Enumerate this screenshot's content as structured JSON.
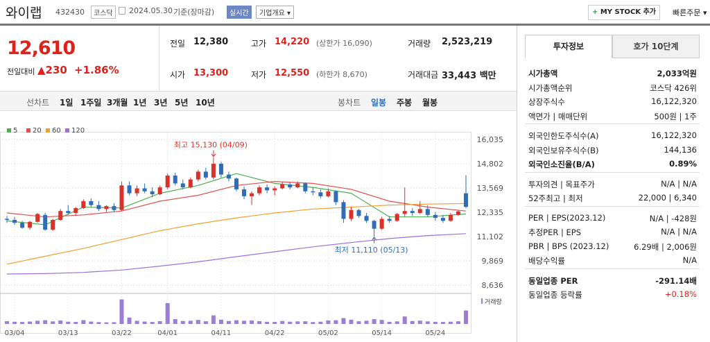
{
  "header": {
    "name": "와이랩",
    "code": "432430",
    "market": "코스닥",
    "date": "2024.05.30",
    "basis": "기준(장마감)",
    "badge": "실시간",
    "overview": "기업개요",
    "mystock": "MY STOCK 추가",
    "quick": "빠른주문"
  },
  "price": {
    "current": "12,610",
    "change_label": "전일대비",
    "change": "230",
    "rate": "+1.86%"
  },
  "summary": [
    [
      {
        "label": "전일",
        "value": "12,380"
      },
      {
        "label": "고가",
        "value": "14,220",
        "note": "(상한가 16,090)"
      },
      {
        "label": "거래량",
        "value": "2,523,219"
      }
    ],
    [
      {
        "label": "시가",
        "value": "13,300"
      },
      {
        "label": "저가",
        "value": "12,550",
        "note": "(하한가 8,670)"
      },
      {
        "label": "거래대금",
        "value": "33,443 백만"
      }
    ]
  ],
  "periods": {
    "line_label": "선차트",
    "line": [
      "1일",
      "1주일",
      "3개월",
      "1년",
      "3년",
      "5년",
      "10년"
    ],
    "candle_label": "봉차트",
    "candle": [
      "일봉",
      "주봉",
      "월봉"
    ]
  },
  "chart": {
    "type": "candlestick",
    "legend": [
      {
        "name": "5",
        "color": "#4caf50"
      },
      {
        "name": "20",
        "color": "#e15151"
      },
      {
        "name": "60",
        "color": "#f0a030"
      },
      {
        "name": "120",
        "color": "#a070d8"
      }
    ],
    "ylim": [
      8636,
      16035
    ],
    "yticks": [
      {
        "value": 16035,
        "label": "16,035"
      },
      {
        "value": 14802,
        "label": "14,802"
      },
      {
        "value": 13569,
        "label": "13,569"
      },
      {
        "value": 12335,
        "label": "12,335"
      },
      {
        "value": 11102,
        "label": "11,102"
      },
      {
        "value": 9869,
        "label": "9,869"
      },
      {
        "value": 8636,
        "label": "8,636"
      }
    ],
    "xlim": [
      0,
      60
    ],
    "xticks": [
      {
        "value": 1,
        "label": "03/04"
      },
      {
        "value": 8,
        "label": "03/13"
      },
      {
        "value": 15,
        "label": "03/22"
      },
      {
        "value": 21,
        "label": "04/01"
      },
      {
        "value": 28,
        "label": "04/11"
      },
      {
        "value": 35,
        "label": "04/22"
      },
      {
        "value": 42,
        "label": "05/02"
      },
      {
        "value": 49,
        "label": "05/14"
      },
      {
        "value": 56,
        "label": "05/24"
      }
    ],
    "up_color": "#d9322a",
    "down_color": "#2f6db8",
    "candles": [
      [
        12000,
        12150,
        11800,
        11950
      ],
      [
        11950,
        12100,
        11700,
        11800
      ],
      [
        11800,
        11900,
        11500,
        11550
      ],
      [
        11550,
        11900,
        11450,
        11850
      ],
      [
        11850,
        12300,
        11800,
        12250
      ],
      [
        12200,
        12300,
        11400,
        11450
      ],
      [
        11450,
        12000,
        11400,
        11950
      ],
      [
        11950,
        12500,
        11900,
        12400
      ],
      [
        12400,
        12700,
        12200,
        12300
      ],
      [
        12300,
        12600,
        12150,
        12550
      ],
      [
        12550,
        13000,
        12500,
        12900
      ],
      [
        12900,
        13050,
        12600,
        12700
      ],
      [
        12700,
        12900,
        12400,
        12500
      ],
      [
        12500,
        12700,
        12350,
        12650
      ],
      [
        12650,
        12800,
        12350,
        12450
      ],
      [
        12450,
        13900,
        12400,
        13700
      ],
      [
        13700,
        13900,
        13200,
        13300
      ],
      [
        13300,
        13700,
        13150,
        13550
      ],
      [
        13550,
        13800,
        13300,
        13400
      ],
      [
        13400,
        13600,
        13100,
        13250
      ],
      [
        13250,
        13700,
        13200,
        13600
      ],
      [
        13600,
        14300,
        13500,
        14200
      ],
      [
        14200,
        14350,
        13700,
        13800
      ],
      [
        13800,
        14000,
        13500,
        13600
      ],
      [
        13600,
        14100,
        13550,
        14000
      ],
      [
        14000,
        14500,
        13900,
        14400
      ],
      [
        14400,
        14600,
        14000,
        14100
      ],
      [
        14100,
        15130,
        14000,
        14800
      ],
      [
        14800,
        14900,
        14100,
        14250
      ],
      [
        14250,
        14400,
        13900,
        14050
      ],
      [
        14050,
        14100,
        13400,
        13500
      ],
      [
        13500,
        13650,
        13000,
        13150
      ],
      [
        13150,
        13400,
        12700,
        13300
      ],
      [
        13300,
        13700,
        13200,
        13600
      ],
      [
        13600,
        13750,
        13300,
        13450
      ],
      [
        13450,
        13650,
        13200,
        13550
      ],
      [
        13550,
        13900,
        13500,
        13750
      ],
      [
        13750,
        13850,
        13500,
        13600
      ],
      [
        13600,
        13900,
        13550,
        13800
      ],
      [
        13800,
        13850,
        13300,
        13400
      ],
      [
        13400,
        13600,
        13200,
        13350
      ],
      [
        13350,
        13500,
        13050,
        13150
      ],
      [
        13150,
        13550,
        13100,
        13400
      ],
      [
        13400,
        13450,
        12700,
        12850
      ],
      [
        12850,
        12950,
        11800,
        12000
      ],
      [
        12000,
        12600,
        11900,
        12450
      ],
      [
        12450,
        12500,
        12050,
        12150
      ],
      [
        12150,
        12300,
        11800,
        11900
      ],
      [
        11900,
        11950,
        11110,
        11500
      ],
      [
        11500,
        12100,
        11450,
        12000
      ],
      [
        12000,
        12150,
        11800,
        11900
      ],
      [
        11900,
        12300,
        11850,
        12250
      ],
      [
        12250,
        13600,
        12100,
        12400
      ],
      [
        12400,
        12550,
        12150,
        12300
      ],
      [
        12300,
        12900,
        12250,
        12500
      ],
      [
        12500,
        12700,
        12100,
        12200
      ],
      [
        12200,
        12350,
        11900,
        12050
      ],
      [
        12050,
        12200,
        11800,
        11900
      ],
      [
        11900,
        12300,
        11850,
        12200
      ],
      [
        12200,
        12450,
        12150,
        12380
      ],
      [
        13300,
        14220,
        12550,
        12610
      ]
    ],
    "ma_x": [
      0,
      5,
      10,
      15,
      20,
      25,
      30,
      35,
      40,
      45,
      50,
      55,
      60
    ],
    "ma": [
      [
        11900,
        11700,
        12600,
        12550,
        13300,
        13700,
        14300,
        13800,
        13600,
        13300,
        12100,
        12100,
        12250
      ],
      [
        12300,
        12100,
        12200,
        12400,
        12900,
        13200,
        13700,
        13900,
        13800,
        13500,
        12900,
        12600,
        12400
      ],
      [
        9700,
        10100,
        10500,
        10950,
        11400,
        11750,
        12050,
        12300,
        12500,
        12600,
        12700,
        12750,
        12780
      ],
      [
        9200,
        9220,
        9280,
        9400,
        9600,
        9820,
        10080,
        10330,
        10580,
        10800,
        11000,
        11150,
        11250
      ]
    ],
    "high_label": "최고 15,130 (04/09)",
    "high_index": 27,
    "low_label": "최저 11,110 (05/13)",
    "low_index": 48,
    "volume_label": "거래량",
    "volume_lim": [
      0,
      4800000
    ],
    "volume_color": "#9b7fd4",
    "volume": [
      520000,
      410000,
      380000,
      450000,
      600000,
      700000,
      480000,
      650000,
      420000,
      380000,
      720000,
      450000,
      350000,
      300000,
      330000,
      4600000,
      1200000,
      600000,
      450000,
      380000,
      520000,
      3900000,
      900000,
      550000,
      600000,
      750000,
      500000,
      1600000,
      800000,
      550000,
      700000,
      600000,
      650000,
      520000,
      400000,
      380000,
      560000,
      420000,
      480000,
      500000,
      360000,
      420000,
      650000,
      700000,
      1100000,
      800000,
      500000,
      600000,
      900000,
      750000,
      400000,
      480000,
      1400000,
      550000,
      620000,
      480000,
      400000,
      380000,
      420000,
      500000,
      2523219
    ]
  },
  "panel": {
    "tabs": [
      "투자정보",
      "호가 10단계"
    ],
    "groups": [
      [
        {
          "label": "시가총액",
          "value": "2,033억원",
          "strong": true
        },
        {
          "label": "시가총액순위",
          "value": "코스닥 426위"
        },
        {
          "label": "상장주식수",
          "value": "16,122,320"
        },
        {
          "label": "액면가 | 매매단위",
          "value": "500원 | 1주"
        }
      ],
      [
        {
          "label": "외국인한도주식수(A)",
          "value": "16,122,320"
        },
        {
          "label": "외국인보유주식수(B)",
          "value": "144,136"
        },
        {
          "label": "외국인소진율(B/A)",
          "value": "0.89%",
          "strong": true
        }
      ],
      [
        {
          "label": "투자의견 | 목표주가",
          "value": "N/A | N/A"
        },
        {
          "label": "52주최고 | 최저",
          "value": "22,000 | 6,340"
        }
      ],
      [
        {
          "label": "PER | EPS(2023.12)",
          "value": "N/A | -428원"
        },
        {
          "label": "추정PER | EPS",
          "value": "N/A | N/A"
        },
        {
          "label": "PBR | BPS (2023.12)",
          "value": "6.29배 | 2,006원"
        },
        {
          "label": "배당수익률",
          "value": "N/A"
        }
      ],
      [
        {
          "label": "동일업종 PER",
          "value": "-291.14배",
          "strong": true
        },
        {
          "label": "동일업종 등락률",
          "value": "+0.18%",
          "color": "#e0211b"
        }
      ]
    ]
  }
}
